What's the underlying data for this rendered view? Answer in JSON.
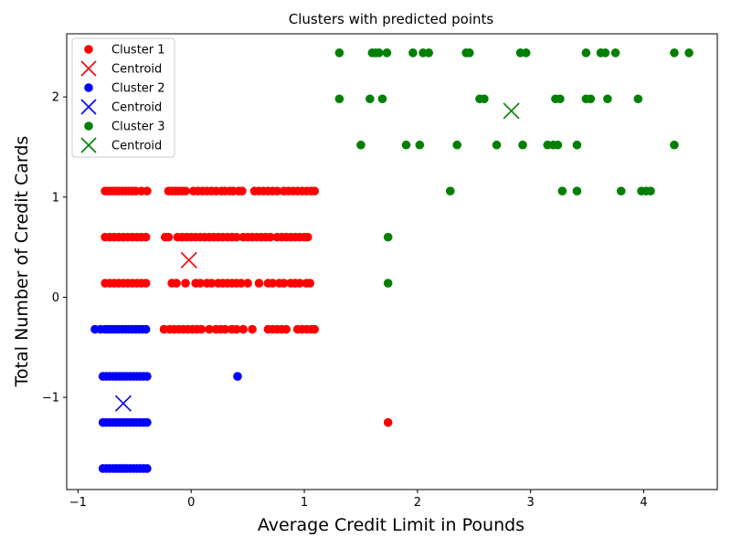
{
  "chart_data": {
    "type": "scatter",
    "title": "Clusters with predicted points",
    "xlabel": "Average Credit Limit in Pounds",
    "ylabel": "Total Number of Credit Cards",
    "xlim": [
      -1.1,
      4.65
    ],
    "ylim": [
      -1.92,
      2.63
    ],
    "xticks": [
      -1,
      0,
      1,
      2,
      3,
      4
    ],
    "yticks": [
      -1,
      0,
      1,
      2
    ],
    "tick_labels_x": [
      "−1",
      "0",
      "1",
      "2",
      "3",
      "4"
    ],
    "tick_labels_y": [
      "−1",
      "0",
      "1",
      "2"
    ],
    "legend_position": "top-left",
    "grid": false,
    "series": [
      {
        "name": "Cluster 1",
        "color": "#ff0000",
        "marker": "dot",
        "points": [
          [
            -0.76,
            1.06
          ],
          [
            -0.73,
            1.06
          ],
          [
            -0.7,
            1.06
          ],
          [
            -0.67,
            1.06
          ],
          [
            -0.64,
            1.06
          ],
          [
            -0.61,
            1.06
          ],
          [
            -0.58,
            1.06
          ],
          [
            -0.55,
            1.06
          ],
          [
            -0.52,
            1.06
          ],
          [
            -0.49,
            1.06
          ],
          [
            -0.44,
            1.06
          ],
          [
            -0.39,
            1.06
          ],
          [
            -0.2,
            1.06
          ],
          [
            -0.17,
            1.06
          ],
          [
            -0.14,
            1.06
          ],
          [
            -0.11,
            1.06
          ],
          [
            -0.08,
            1.06
          ],
          [
            -0.05,
            1.06
          ],
          [
            0.02,
            1.06
          ],
          [
            0.06,
            1.06
          ],
          [
            0.1,
            1.06
          ],
          [
            0.14,
            1.06
          ],
          [
            0.18,
            1.06
          ],
          [
            0.22,
            1.06
          ],
          [
            0.27,
            1.06
          ],
          [
            0.3,
            1.06
          ],
          [
            0.34,
            1.06
          ],
          [
            0.37,
            1.06
          ],
          [
            0.42,
            1.06
          ],
          [
            0.45,
            1.06
          ],
          [
            0.56,
            1.06
          ],
          [
            0.6,
            1.06
          ],
          [
            0.64,
            1.06
          ],
          [
            0.68,
            1.06
          ],
          [
            0.72,
            1.06
          ],
          [
            0.76,
            1.06
          ],
          [
            0.82,
            1.06
          ],
          [
            0.86,
            1.06
          ],
          [
            0.9,
            1.06
          ],
          [
            0.94,
            1.06
          ],
          [
            0.98,
            1.06
          ],
          [
            1.02,
            1.06
          ],
          [
            1.06,
            1.06
          ],
          [
            1.09,
            1.06
          ],
          [
            -0.76,
            0.6
          ],
          [
            -0.72,
            0.6
          ],
          [
            -0.68,
            0.6
          ],
          [
            -0.64,
            0.6
          ],
          [
            -0.6,
            0.6
          ],
          [
            -0.56,
            0.6
          ],
          [
            -0.52,
            0.6
          ],
          [
            -0.48,
            0.6
          ],
          [
            -0.44,
            0.6
          ],
          [
            -0.4,
            0.6
          ],
          [
            -0.23,
            0.6
          ],
          [
            -0.2,
            0.6
          ],
          [
            -0.12,
            0.6
          ],
          [
            -0.08,
            0.6
          ],
          [
            -0.04,
            0.6
          ],
          [
            0.0,
            0.6
          ],
          [
            0.04,
            0.6
          ],
          [
            0.08,
            0.6
          ],
          [
            0.12,
            0.6
          ],
          [
            0.16,
            0.6
          ],
          [
            0.2,
            0.6
          ],
          [
            0.24,
            0.6
          ],
          [
            0.28,
            0.6
          ],
          [
            0.32,
            0.6
          ],
          [
            0.36,
            0.6
          ],
          [
            0.4,
            0.6
          ],
          [
            0.46,
            0.6
          ],
          [
            0.5,
            0.6
          ],
          [
            0.54,
            0.6
          ],
          [
            0.58,
            0.6
          ],
          [
            0.62,
            0.6
          ],
          [
            0.66,
            0.6
          ],
          [
            0.7,
            0.6
          ],
          [
            0.76,
            0.6
          ],
          [
            0.8,
            0.6
          ],
          [
            0.84,
            0.6
          ],
          [
            0.88,
            0.6
          ],
          [
            0.92,
            0.6
          ],
          [
            0.96,
            0.6
          ],
          [
            1.0,
            0.6
          ],
          [
            1.03,
            0.6
          ],
          [
            -0.76,
            0.14
          ],
          [
            -0.72,
            0.14
          ],
          [
            -0.68,
            0.14
          ],
          [
            -0.64,
            0.14
          ],
          [
            -0.6,
            0.14
          ],
          [
            -0.56,
            0.14
          ],
          [
            -0.52,
            0.14
          ],
          [
            -0.48,
            0.14
          ],
          [
            -0.44,
            0.14
          ],
          [
            -0.4,
            0.14
          ],
          [
            -0.17,
            0.14
          ],
          [
            -0.13,
            0.14
          ],
          [
            -0.05,
            0.14
          ],
          [
            0.04,
            0.14
          ],
          [
            0.08,
            0.14
          ],
          [
            0.14,
            0.14
          ],
          [
            0.18,
            0.14
          ],
          [
            0.24,
            0.14
          ],
          [
            0.28,
            0.14
          ],
          [
            0.32,
            0.14
          ],
          [
            0.36,
            0.14
          ],
          [
            0.4,
            0.14
          ],
          [
            0.44,
            0.14
          ],
          [
            0.5,
            0.14
          ],
          [
            0.6,
            0.14
          ],
          [
            0.68,
            0.14
          ],
          [
            0.72,
            0.14
          ],
          [
            0.78,
            0.14
          ],
          [
            0.82,
            0.14
          ],
          [
            0.88,
            0.14
          ],
          [
            0.92,
            0.14
          ],
          [
            0.96,
            0.14
          ],
          [
            1.02,
            0.14
          ],
          [
            1.05,
            0.14
          ],
          [
            -0.24,
            -0.32
          ],
          [
            -0.19,
            -0.32
          ],
          [
            -0.15,
            -0.32
          ],
          [
            -0.11,
            -0.32
          ],
          [
            -0.07,
            -0.32
          ],
          [
            -0.03,
            -0.32
          ],
          [
            0.01,
            -0.32
          ],
          [
            0.05,
            -0.32
          ],
          [
            0.09,
            -0.32
          ],
          [
            0.16,
            -0.32
          ],
          [
            0.22,
            -0.32
          ],
          [
            0.26,
            -0.32
          ],
          [
            0.3,
            -0.32
          ],
          [
            0.36,
            -0.32
          ],
          [
            0.4,
            -0.32
          ],
          [
            0.46,
            -0.32
          ],
          [
            0.54,
            -0.32
          ],
          [
            0.68,
            -0.32
          ],
          [
            0.72,
            -0.32
          ],
          [
            0.76,
            -0.32
          ],
          [
            0.8,
            -0.32
          ],
          [
            0.84,
            -0.32
          ],
          [
            0.94,
            -0.32
          ],
          [
            0.98,
            -0.32
          ],
          [
            1.02,
            -0.32
          ],
          [
            1.06,
            -0.32
          ],
          [
            1.09,
            -0.32
          ],
          [
            1.74,
            -1.25
          ]
        ]
      },
      {
        "name": "Centroid",
        "color": "#ff0000",
        "marker": "x",
        "points": [
          [
            -0.02,
            0.37
          ]
        ]
      },
      {
        "name": "Cluster 2",
        "color": "#0000ff",
        "marker": "dot",
        "points": [
          [
            -0.85,
            -0.32
          ],
          [
            -0.8,
            -0.32
          ],
          [
            -0.76,
            -0.32
          ],
          [
            -0.73,
            -0.32
          ],
          [
            -0.7,
            -0.32
          ],
          [
            -0.67,
            -0.32
          ],
          [
            -0.64,
            -0.32
          ],
          [
            -0.61,
            -0.32
          ],
          [
            -0.58,
            -0.32
          ],
          [
            -0.55,
            -0.32
          ],
          [
            -0.52,
            -0.32
          ],
          [
            -0.49,
            -0.32
          ],
          [
            -0.46,
            -0.32
          ],
          [
            -0.43,
            -0.32
          ],
          [
            -0.4,
            -0.32
          ],
          [
            -0.78,
            -0.79
          ],
          [
            -0.75,
            -0.79
          ],
          [
            -0.72,
            -0.79
          ],
          [
            -0.69,
            -0.79
          ],
          [
            -0.66,
            -0.79
          ],
          [
            -0.63,
            -0.79
          ],
          [
            -0.6,
            -0.79
          ],
          [
            -0.57,
            -0.79
          ],
          [
            -0.54,
            -0.79
          ],
          [
            -0.51,
            -0.79
          ],
          [
            -0.48,
            -0.79
          ],
          [
            -0.45,
            -0.79
          ],
          [
            -0.42,
            -0.79
          ],
          [
            -0.39,
            -0.79
          ],
          [
            0.41,
            -0.79
          ],
          [
            -0.78,
            -1.25
          ],
          [
            -0.75,
            -1.25
          ],
          [
            -0.72,
            -1.25
          ],
          [
            -0.69,
            -1.25
          ],
          [
            -0.66,
            -1.25
          ],
          [
            -0.63,
            -1.25
          ],
          [
            -0.6,
            -1.25
          ],
          [
            -0.57,
            -1.25
          ],
          [
            -0.54,
            -1.25
          ],
          [
            -0.51,
            -1.25
          ],
          [
            -0.48,
            -1.25
          ],
          [
            -0.45,
            -1.25
          ],
          [
            -0.42,
            -1.25
          ],
          [
            -0.39,
            -1.25
          ],
          [
            -0.78,
            -1.71
          ],
          [
            -0.75,
            -1.71
          ],
          [
            -0.72,
            -1.71
          ],
          [
            -0.69,
            -1.71
          ],
          [
            -0.66,
            -1.71
          ],
          [
            -0.63,
            -1.71
          ],
          [
            -0.6,
            -1.71
          ],
          [
            -0.57,
            -1.71
          ],
          [
            -0.54,
            -1.71
          ],
          [
            -0.51,
            -1.71
          ],
          [
            -0.48,
            -1.71
          ],
          [
            -0.45,
            -1.71
          ],
          [
            -0.42,
            -1.71
          ],
          [
            -0.39,
            -1.71
          ]
        ]
      },
      {
        "name": "Centroid",
        "color": "#0000ff",
        "marker": "x",
        "points": [
          [
            -0.6,
            -1.06
          ]
        ]
      },
      {
        "name": "Cluster 3",
        "color": "#008000",
        "marker": "dot",
        "points": [
          [
            1.31,
            2.44
          ],
          [
            1.6,
            2.44
          ],
          [
            1.63,
            2.44
          ],
          [
            1.66,
            2.44
          ],
          [
            1.73,
            2.44
          ],
          [
            1.96,
            2.44
          ],
          [
            2.05,
            2.44
          ],
          [
            2.1,
            2.44
          ],
          [
            2.43,
            2.44
          ],
          [
            2.46,
            2.44
          ],
          [
            2.91,
            2.44
          ],
          [
            2.96,
            2.44
          ],
          [
            3.49,
            2.44
          ],
          [
            3.62,
            2.44
          ],
          [
            3.66,
            2.44
          ],
          [
            3.75,
            2.44
          ],
          [
            4.27,
            2.44
          ],
          [
            4.4,
            2.44
          ],
          [
            1.31,
            1.98
          ],
          [
            1.58,
            1.98
          ],
          [
            1.69,
            1.98
          ],
          [
            2.55,
            1.98
          ],
          [
            2.59,
            1.98
          ],
          [
            3.22,
            1.98
          ],
          [
            3.26,
            1.98
          ],
          [
            3.49,
            1.98
          ],
          [
            3.53,
            1.98
          ],
          [
            3.68,
            1.98
          ],
          [
            3.95,
            1.98
          ],
          [
            1.5,
            1.52
          ],
          [
            1.9,
            1.52
          ],
          [
            2.02,
            1.52
          ],
          [
            2.35,
            1.52
          ],
          [
            2.7,
            1.52
          ],
          [
            2.93,
            1.52
          ],
          [
            3.15,
            1.52
          ],
          [
            3.2,
            1.52
          ],
          [
            3.24,
            1.52
          ],
          [
            3.41,
            1.52
          ],
          [
            4.27,
            1.52
          ],
          [
            2.29,
            1.06
          ],
          [
            3.28,
            1.06
          ],
          [
            3.41,
            1.06
          ],
          [
            3.8,
            1.06
          ],
          [
            3.98,
            1.06
          ],
          [
            4.02,
            1.06
          ],
          [
            4.06,
            1.06
          ],
          [
            1.74,
            0.6
          ],
          [
            1.74,
            0.14
          ]
        ]
      },
      {
        "name": "Centroid",
        "color": "#008000",
        "marker": "x",
        "points": [
          [
            2.83,
            1.86
          ]
        ]
      }
    ]
  }
}
